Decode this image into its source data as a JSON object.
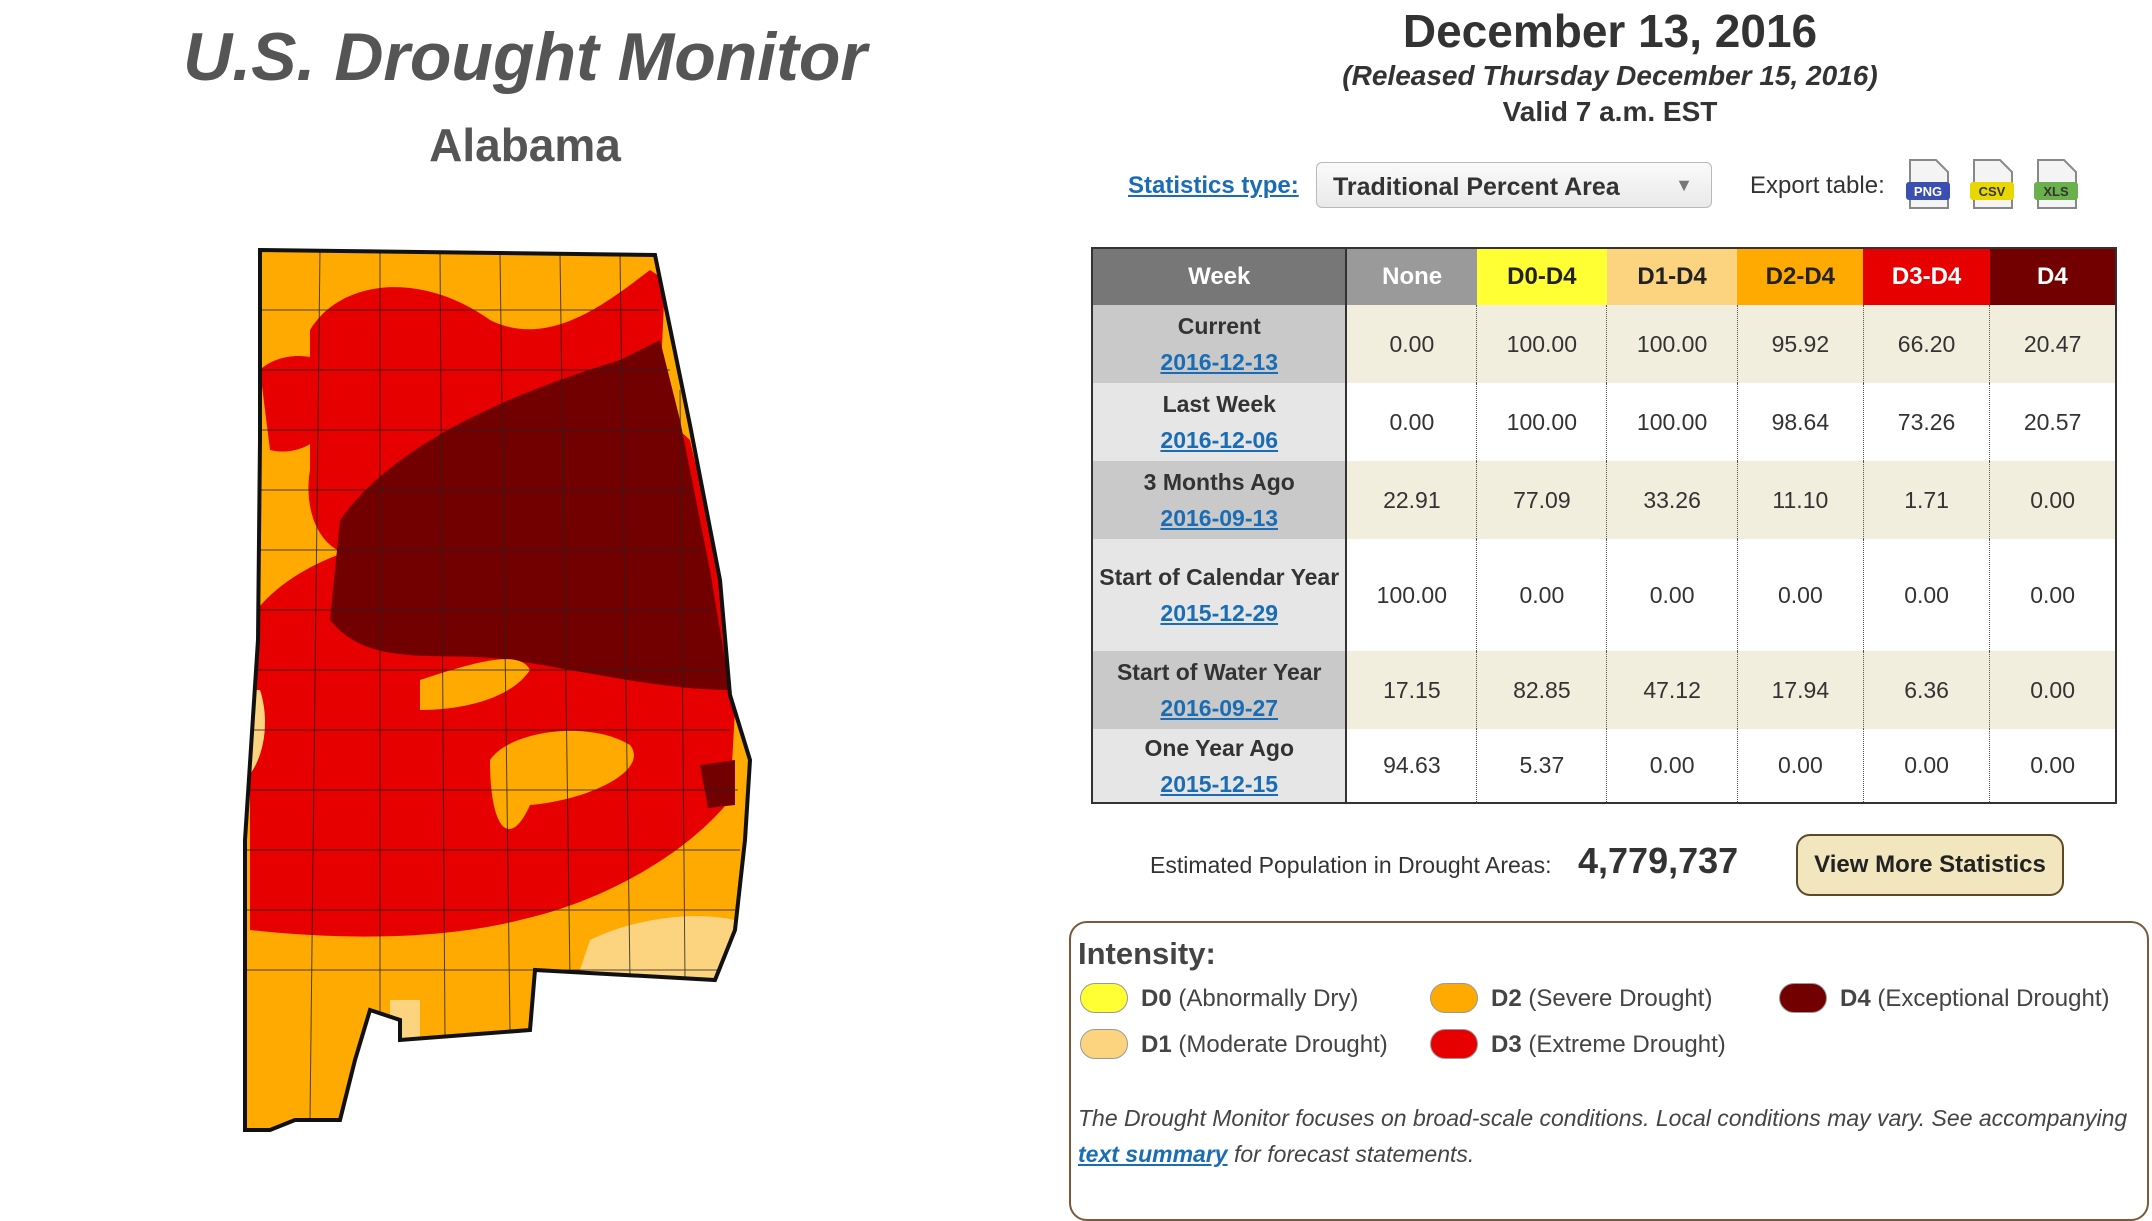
{
  "title": "U.S. Drought Monitor",
  "state": "Alabama",
  "date": "December 13, 2016",
  "released": "(Released Thursday December 15, 2016)",
  "valid": "Valid 7 a.m. EST",
  "controls": {
    "stats_type_label": "Statistics type:",
    "stats_type_value": "Traditional Percent Area",
    "export_label": "Export table:",
    "export_formats": [
      "PNG",
      "CSV",
      "XLS"
    ]
  },
  "table": {
    "headers": [
      "Week",
      "None",
      "D0-D4",
      "D1-D4",
      "D2-D4",
      "D3-D4",
      "D4"
    ],
    "header_colors": [
      "#777777",
      "#9a9a9a",
      "#ffff33",
      "#fcd37f",
      "#ffaa00",
      "#e60000",
      "#730000"
    ],
    "rows": [
      {
        "week": "Current",
        "date": "2016-12-13",
        "values": [
          "0.00",
          "100.00",
          "100.00",
          "95.92",
          "66.20",
          "20.47"
        ]
      },
      {
        "week": "Last Week",
        "date": "2016-12-06",
        "values": [
          "0.00",
          "100.00",
          "100.00",
          "98.64",
          "73.26",
          "20.57"
        ]
      },
      {
        "week": "3 Months Ago",
        "date": "2016-09-13",
        "values": [
          "22.91",
          "77.09",
          "33.26",
          "11.10",
          "1.71",
          "0.00"
        ]
      },
      {
        "week": "Start of Calendar Year",
        "date": "2015-12-29",
        "values": [
          "100.00",
          "0.00",
          "0.00",
          "0.00",
          "0.00",
          "0.00"
        ]
      },
      {
        "week": "Start of Water Year",
        "date": "2016-09-27",
        "values": [
          "17.15",
          "82.85",
          "47.12",
          "17.94",
          "6.36",
          "0.00"
        ]
      },
      {
        "week": "One Year Ago",
        "date": "2015-12-15",
        "values": [
          "94.63",
          "5.37",
          "0.00",
          "0.00",
          "0.00",
          "0.00"
        ]
      }
    ]
  },
  "population": {
    "label": "Estimated Population in Drought Areas:",
    "value": "4,779,737"
  },
  "more_stats_label": "View More Statistics",
  "legend": {
    "title": "Intensity:",
    "items": [
      {
        "code": "D0",
        "desc": "(Abnormally Dry)",
        "color": "#ffff33"
      },
      {
        "code": "D1",
        "desc": "(Moderate Drought)",
        "color": "#fcd37f"
      },
      {
        "code": "D2",
        "desc": "(Severe Drought)",
        "color": "#ffaa00"
      },
      {
        "code": "D3",
        "desc": "(Extreme Drought)",
        "color": "#e60000"
      },
      {
        "code": "D4",
        "desc": "(Exceptional Drought)",
        "color": "#730000"
      }
    ],
    "note_before": "The Drought Monitor focuses on broad-scale conditions. Local conditions may vary. See accompanying ",
    "note_link": "text summary",
    "note_after": " for forecast statements."
  }
}
